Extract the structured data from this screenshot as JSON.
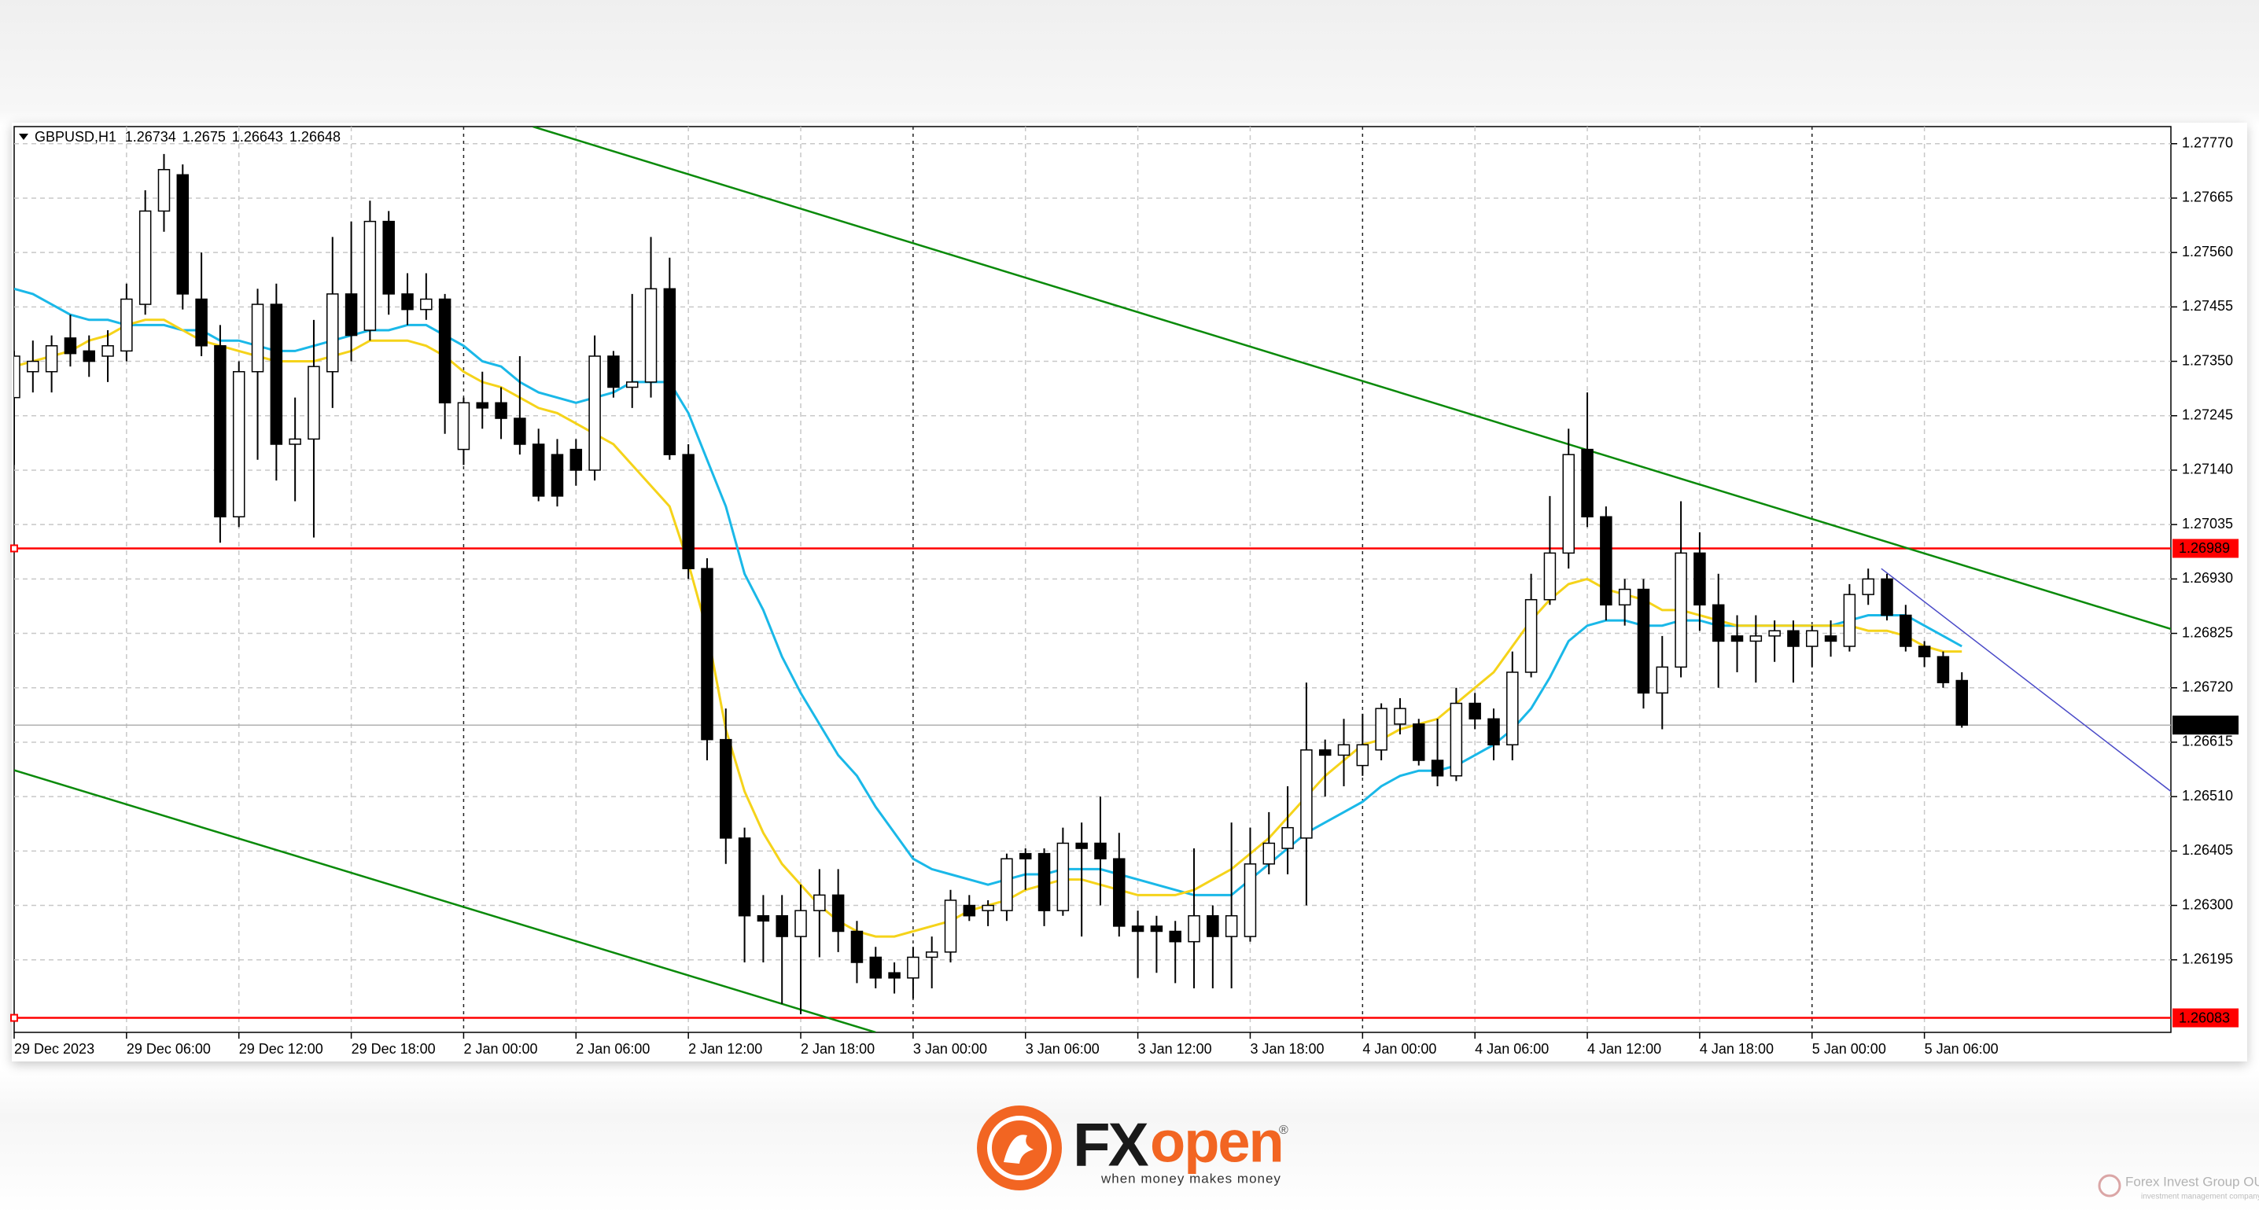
{
  "chart_data": {
    "type": "candlestick",
    "title": "GBPUSD,H1",
    "categories": [
      "29 Dec 2023",
      null,
      null,
      null,
      null,
      null,
      "29 Dec 06:00",
      null,
      null,
      null,
      null,
      null,
      "29 Dec 12:00",
      null,
      null,
      null,
      null,
      null,
      "29 Dec 18:00",
      null,
      null,
      null,
      null,
      null,
      "2 Jan 00:00",
      null,
      null,
      null,
      null,
      null,
      "2 Jan 06:00",
      null,
      null,
      null,
      null,
      null,
      "2 Jan 12:00",
      null,
      null,
      null,
      null,
      null,
      "2 Jan 18:00",
      null,
      null,
      null,
      null,
      null,
      "3 Jan 00:00",
      null,
      null,
      null,
      null,
      null,
      "3 Jan 06:00",
      null,
      null,
      null,
      null,
      null,
      "3 Jan 12:00",
      null,
      null,
      null,
      null,
      null,
      "3 Jan 18:00",
      null,
      null,
      null,
      null,
      null,
      "4 Jan 00:00",
      null,
      null,
      null,
      null,
      null,
      "4 Jan 06:00",
      null,
      null,
      null,
      null,
      null,
      "4 Jan 12:00",
      null,
      null,
      null,
      null,
      null,
      "4 Jan 18:00",
      null,
      null,
      null,
      null,
      null,
      "5 Jan 00:00",
      null,
      null,
      null,
      null,
      null,
      "5 Jan 06:00",
      null,
      null
    ],
    "open": [
      1.2728,
      1.2733,
      1.2733,
      1.27395,
      1.2737,
      1.2736,
      1.2737,
      1.2746,
      1.2764,
      1.2771,
      1.2747,
      1.2738,
      1.2705,
      1.2733,
      1.2746,
      1.2719,
      1.272,
      1.2733,
      1.2748,
      1.2741,
      1.2762,
      1.2748,
      1.2745,
      1.2747,
      1.2718,
      1.2727,
      1.2727,
      1.2724,
      1.2719,
      1.2717,
      1.2718,
      1.2714,
      1.2736,
      1.273,
      1.2731,
      1.2749,
      1.2717,
      1.2695,
      1.2662,
      1.2643,
      1.2628,
      1.2628,
      1.2624,
      1.2629,
      1.2632,
      1.2625,
      1.262,
      1.2617,
      1.2616,
      1.262,
      1.2621,
      1.263,
      1.2629,
      1.2629,
      1.264,
      1.264,
      1.2629,
      1.2642,
      1.2642,
      1.2639,
      1.2626,
      1.2626,
      1.2625,
      1.2623,
      1.2628,
      1.2624,
      1.2624,
      1.2638,
      1.2641,
      1.2643,
      1.266,
      1.2659,
      1.2657,
      1.266,
      1.2665,
      1.2665,
      1.2658,
      1.2655,
      1.2669,
      1.2666,
      1.2661,
      1.2675,
      1.2689,
      1.2698,
      1.2718,
      1.2705,
      1.2688,
      1.2691,
      1.2671,
      1.2676,
      1.2698,
      1.2688,
      1.2682,
      1.2681,
      1.2682,
      1.2683,
      1.268,
      1.2682,
      1.268,
      1.269,
      1.2693,
      1.2686,
      1.268,
      1.2678,
      1.26734
    ],
    "high": [
      1.2737,
      1.2739,
      1.274,
      1.2744,
      1.274,
      1.2741,
      1.275,
      1.2768,
      1.2775,
      1.2773,
      1.2756,
      1.2742,
      1.2735,
      1.2749,
      1.275,
      1.2728,
      1.2743,
      1.2759,
      1.2762,
      1.2766,
      1.2764,
      1.2752,
      1.2752,
      1.2748,
      1.2728,
      1.2733,
      1.273,
      1.2736,
      1.2722,
      1.272,
      1.272,
      1.274,
      1.2737,
      1.2748,
      1.2759,
      1.2755,
      1.2719,
      1.2697,
      1.2668,
      1.2645,
      1.2632,
      1.2632,
      1.2634,
      1.2637,
      1.2637,
      1.2627,
      1.2622,
      1.2619,
      1.2622,
      1.2624,
      1.2633,
      1.2632,
      1.2631,
      1.264,
      1.2641,
      1.2641,
      1.2645,
      1.2646,
      1.2651,
      1.2644,
      1.2629,
      1.2628,
      1.2627,
      1.2641,
      1.263,
      1.2646,
      1.2645,
      1.2648,
      1.2653,
      1.2673,
      1.2662,
      1.2666,
      1.2667,
      1.2669,
      1.267,
      1.2666,
      1.2666,
      1.2672,
      1.2671,
      1.2668,
      1.2679,
      1.2694,
      1.2709,
      1.2722,
      1.2729,
      1.2707,
      1.2693,
      1.2693,
      1.2682,
      1.2708,
      1.2702,
      1.2694,
      1.2686,
      1.2686,
      1.2685,
      1.2685,
      1.2684,
      1.2685,
      1.2692,
      1.2695,
      1.2694,
      1.2688,
      1.2681,
      1.2679,
      1.2675
    ],
    "low": [
      1.2715,
      1.2729,
      1.2729,
      1.2734,
      1.2732,
      1.2731,
      1.2735,
      1.2744,
      1.276,
      1.2745,
      1.2736,
      1.27,
      1.2703,
      1.2716,
      1.2712,
      1.2708,
      1.2701,
      1.2726,
      1.2735,
      1.2739,
      1.2744,
      1.2742,
      1.2743,
      1.2721,
      1.2715,
      1.2722,
      1.272,
      1.2717,
      1.2708,
      1.2707,
      1.2711,
      1.2712,
      1.2728,
      1.2726,
      1.2728,
      1.2716,
      1.2693,
      1.2658,
      1.2638,
      1.2619,
      1.2619,
      1.2611,
      1.2609,
      1.262,
      1.2621,
      1.2615,
      1.2614,
      1.2613,
      1.2612,
      1.2614,
      1.2619,
      1.2627,
      1.2626,
      1.2627,
      1.2633,
      1.2626,
      1.2628,
      1.2624,
      1.263,
      1.2624,
      1.2616,
      1.2617,
      1.2615,
      1.2614,
      1.2614,
      1.2614,
      1.2623,
      1.2636,
      1.2636,
      1.263,
      1.2651,
      1.2653,
      1.2655,
      1.2658,
      1.2663,
      1.2657,
      1.2653,
      1.2654,
      1.2664,
      1.2658,
      1.2658,
      1.2674,
      1.2688,
      1.2695,
      1.2703,
      1.2685,
      1.2684,
      1.2668,
      1.2664,
      1.2674,
      1.2683,
      1.2672,
      1.2675,
      1.2673,
      1.2677,
      1.2673,
      1.2676,
      1.2678,
      1.2679,
      1.2688,
      1.2685,
      1.2679,
      1.2676,
      1.2672,
      1.26643
    ],
    "close": [
      1.2736,
      1.2735,
      1.2738,
      1.27365,
      1.2735,
      1.2738,
      1.2747,
      1.2764,
      1.2772,
      1.2748,
      1.2738,
      1.2705,
      1.2733,
      1.2746,
      1.2719,
      1.272,
      1.2734,
      1.2748,
      1.274,
      1.2762,
      1.2748,
      1.2745,
      1.2747,
      1.2727,
      1.2727,
      1.2726,
      1.2724,
      1.2719,
      1.2709,
      1.2709,
      1.2714,
      1.2736,
      1.273,
      1.2731,
      1.2749,
      1.2717,
      1.2695,
      1.2662,
      1.2643,
      1.2628,
      1.2627,
      1.2624,
      1.2629,
      1.2632,
      1.2625,
      1.2619,
      1.2616,
      1.2616,
      1.262,
      1.2621,
      1.2631,
      1.2628,
      1.263,
      1.2639,
      1.2639,
      1.2629,
      1.2642,
      1.2641,
      1.2639,
      1.2626,
      1.2625,
      1.2625,
      1.2623,
      1.2628,
      1.2624,
      1.2628,
      1.2638,
      1.2642,
      1.2645,
      1.266,
      1.2659,
      1.2661,
      1.2661,
      1.2668,
      1.2668,
      1.2658,
      1.2655,
      1.2669,
      1.2666,
      1.2661,
      1.2675,
      1.2689,
      1.2698,
      1.2717,
      1.2705,
      1.2688,
      1.2691,
      1.2671,
      1.2676,
      1.2698,
      1.2688,
      1.2681,
      1.2681,
      1.2682,
      1.2683,
      1.268,
      1.2683,
      1.2681,
      1.269,
      1.2693,
      1.2686,
      1.268,
      1.2678,
      1.2673,
      1.26648
    ],
    "up_color": "#ffffff",
    "down_color": "#000000",
    "overlays": [
      {
        "color": "#1ab8e8",
        "values": [
          1.2749,
          1.2748,
          1.2746,
          1.2744,
          1.2743,
          1.2743,
          1.2742,
          1.2742,
          1.2742,
          1.2741,
          1.2741,
          1.2739,
          1.2739,
          1.2738,
          1.2737,
          1.2737,
          1.2738,
          1.2739,
          1.274,
          1.2741,
          1.2741,
          1.2742,
          1.2742,
          1.274,
          1.2738,
          1.2735,
          1.2734,
          1.2731,
          1.2729,
          1.2728,
          1.2727,
          1.2728,
          1.2729,
          1.2731,
          1.2731,
          1.2731,
          1.2725,
          1.2716,
          1.2707,
          1.2694,
          1.2687,
          1.2678,
          1.2671,
          1.2665,
          1.2659,
          1.2655,
          1.2649,
          1.2644,
          1.2639,
          1.2637,
          1.2636,
          1.2635,
          1.2634,
          1.2635,
          1.2636,
          1.2636,
          1.2637,
          1.2637,
          1.2637,
          1.2636,
          1.2635,
          1.2634,
          1.2633,
          1.2632,
          1.2632,
          1.2632,
          1.2635,
          1.2638,
          1.2641,
          1.2644,
          1.2646,
          1.2648,
          1.265,
          1.2653,
          1.2655,
          1.2656,
          1.2656,
          1.2657,
          1.2659,
          1.2661,
          1.2664,
          1.2668,
          1.2674,
          1.2681,
          1.2684,
          1.2685,
          1.2685,
          1.2684,
          1.2684,
          1.2685,
          1.2685,
          1.2684,
          1.2684,
          1.2684,
          1.2684,
          1.2684,
          1.2684,
          1.2684,
          1.2685,
          1.2686,
          1.2686,
          1.2686,
          1.2684,
          1.2682,
          1.268
        ]
      },
      {
        "color": "#f5d31a",
        "values": [
          1.2734,
          1.2735,
          1.2736,
          1.2737,
          1.2739,
          1.274,
          1.2742,
          1.2743,
          1.2743,
          1.2741,
          1.2739,
          1.2738,
          1.2737,
          1.2736,
          1.2735,
          1.2735,
          1.2735,
          1.2736,
          1.2737,
          1.2739,
          1.2739,
          1.2739,
          1.2738,
          1.2736,
          1.2733,
          1.2731,
          1.273,
          1.2728,
          1.2726,
          1.2725,
          1.2723,
          1.2721,
          1.2719,
          1.2715,
          1.2711,
          1.2707,
          1.2696,
          1.2683,
          1.2664,
          1.2652,
          1.2644,
          1.2638,
          1.2634,
          1.263,
          1.2627,
          1.2625,
          1.2624,
          1.2624,
          1.2625,
          1.2626,
          1.2627,
          1.2629,
          1.263,
          1.2631,
          1.2633,
          1.2634,
          1.2635,
          1.2635,
          1.2634,
          1.2633,
          1.2632,
          1.2632,
          1.2632,
          1.2633,
          1.2635,
          1.2637,
          1.264,
          1.2643,
          1.2647,
          1.2651,
          1.2655,
          1.2658,
          1.2661,
          1.2662,
          1.2664,
          1.2665,
          1.2666,
          1.2669,
          1.2672,
          1.2675,
          1.268,
          1.2685,
          1.2689,
          1.2692,
          1.2693,
          1.2691,
          1.269,
          1.2689,
          1.2687,
          1.2687,
          1.2686,
          1.2685,
          1.2684,
          1.2684,
          1.2684,
          1.2684,
          1.2684,
          1.2684,
          1.2684,
          1.2683,
          1.2683,
          1.2682,
          1.268,
          1.2679,
          1.2679
        ]
      }
    ],
    "trend_lines": [
      {
        "color": "#0a8a0a",
        "x": [
          27.7,
          115.2
        ],
        "y": [
          1.27803,
          1.26833
        ]
      },
      {
        "color": "#0a8a0a",
        "x": [
          0,
          46
        ],
        "y": [
          1.26561,
          1.26055
        ]
      },
      {
        "color": "#4a4ac8",
        "x": [
          99.7,
          115.2
        ],
        "y": [
          1.2695,
          1.26519
        ]
      }
    ],
    "hlines": [
      {
        "value": 1.26989,
        "color": "#ff0000"
      },
      {
        "value": 1.26083,
        "color": "#ff0000"
      }
    ],
    "current_price": {
      "value": 1.26648,
      "color": "#b0b0b0"
    },
    "ylim": [
      1.26055,
      1.27803
    ],
    "yticks": [
      {
        "value": 1.2777,
        "label": "1.27770"
      },
      1.27665,
      {
        "value": 1.2756,
        "label": "1.27560"
      },
      1.27455,
      {
        "value": 1.2735,
        "label": "1.27350"
      },
      1.27245,
      {
        "value": 1.2714,
        "label": "1.27140"
      },
      1.27035,
      {
        "value": 1.2693,
        "label": "1.26930"
      },
      1.26825,
      {
        "value": 1.2672,
        "label": "1.26720"
      },
      1.26615,
      {
        "value": 1.2651,
        "label": "1.26510"
      },
      1.26405,
      {
        "value": 1.263,
        "label": "1.26300"
      },
      1.26195
    ],
    "grid": true
  },
  "branding": {
    "logo_fx": "FX",
    "logo_open": "open",
    "registered": "®",
    "tagline": "when money makes money",
    "watermark": "Forex Invest Group OU",
    "watermark_sub": "investment management company"
  }
}
